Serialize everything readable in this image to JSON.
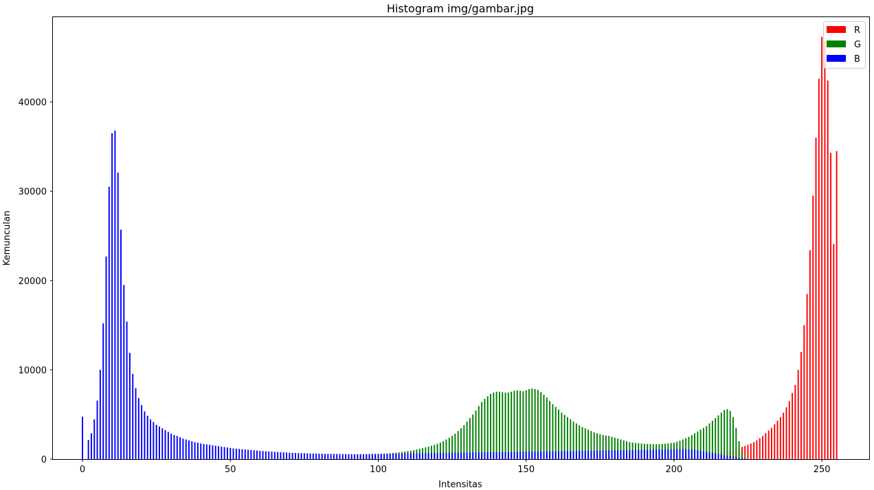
{
  "chart_data": {
    "type": "bar",
    "title": "Histogram img/gambar.jpg",
    "xlabel": "Intensitas",
    "ylabel": "Kemunculan",
    "xlim": [
      -10,
      266
    ],
    "ylim": [
      0,
      49500
    ],
    "xticks": [
      0,
      50,
      100,
      150,
      200,
      250
    ],
    "yticks": [
      0,
      10000,
      20000,
      30000,
      40000
    ],
    "legend_position": "top-right",
    "grid": false,
    "series": [
      {
        "name": "R",
        "color": "#ff0000",
        "values": [
          0,
          0,
          0,
          0,
          0,
          0,
          0,
          0,
          0,
          0,
          0,
          0,
          0,
          0,
          0,
          0,
          0,
          0,
          0,
          0,
          0,
          0,
          0,
          0,
          0,
          0,
          0,
          0,
          0,
          0,
          0,
          0,
          0,
          0,
          0,
          0,
          0,
          0,
          0,
          0,
          0,
          0,
          0,
          0,
          0,
          0,
          0,
          0,
          0,
          0,
          0,
          0,
          0,
          0,
          0,
          0,
          0,
          0,
          0,
          0,
          0,
          0,
          0,
          0,
          0,
          0,
          0,
          0,
          0,
          0,
          0,
          0,
          0,
          0,
          0,
          0,
          0,
          0,
          0,
          0,
          0,
          0,
          0,
          0,
          0,
          0,
          0,
          0,
          0,
          0,
          0,
          0,
          0,
          0,
          0,
          0,
          0,
          0,
          0,
          0,
          0,
          0,
          0,
          0,
          0,
          0,
          0,
          0,
          0,
          0,
          0,
          0,
          0,
          0,
          0,
          0,
          0,
          0,
          0,
          0,
          0,
          0,
          0,
          0,
          0,
          0,
          0,
          0,
          0,
          0,
          0,
          0,
          0,
          0,
          0,
          0,
          0,
          0,
          0,
          0,
          0,
          0,
          0,
          0,
          0,
          0,
          0,
          0,
          0,
          0,
          0,
          0,
          0,
          0,
          0,
          0,
          0,
          0,
          0,
          0,
          0,
          0,
          0,
          0,
          0,
          0,
          0,
          0,
          0,
          0,
          0,
          0,
          0,
          0,
          0,
          0,
          0,
          0,
          0,
          0,
          0,
          0,
          0,
          0,
          0,
          0,
          0,
          0,
          0,
          0,
          0,
          0,
          0,
          0,
          0,
          0,
          0,
          0,
          0,
          0,
          0,
          50,
          80,
          110,
          140,
          170,
          200,
          240,
          280,
          320,
          360,
          410,
          460,
          520,
          580,
          650,
          720,
          800,
          880,
          960,
          1050,
          1150,
          1250,
          1360,
          1480,
          1610,
          1750,
          1900,
          2100,
          2350,
          2600,
          2900,
          3200,
          3500,
          3900,
          4300,
          4700,
          5200,
          5800,
          6500,
          7400,
          8300,
          10000,
          12000,
          15000,
          18500,
          23400,
          29500,
          36000,
          42600,
          47300,
          46800,
          42400,
          34300,
          24100,
          34500
        ]
      },
      {
        "name": "G",
        "color": "#008000",
        "values": [
          0,
          0,
          0,
          0,
          0,
          0,
          0,
          0,
          0,
          0,
          0,
          0,
          0,
          0,
          0,
          0,
          0,
          0,
          0,
          0,
          0,
          0,
          0,
          0,
          0,
          0,
          0,
          0,
          0,
          0,
          0,
          0,
          0,
          0,
          0,
          0,
          0,
          0,
          0,
          0,
          0,
          0,
          0,
          0,
          0,
          0,
          0,
          0,
          0,
          0,
          0,
          0,
          0,
          0,
          0,
          0,
          0,
          0,
          0,
          0,
          0,
          0,
          0,
          0,
          0,
          0,
          0,
          0,
          0,
          0,
          0,
          0,
          0,
          0,
          0,
          0,
          0,
          0,
          0,
          0,
          0,
          0,
          0,
          0,
          0,
          0,
          0,
          0,
          0,
          0,
          0,
          100,
          200,
          300,
          350,
          400,
          450,
          500,
          520,
          540,
          560,
          580,
          600,
          630,
          660,
          690,
          720,
          760,
          800,
          850,
          900,
          950,
          1000,
          1080,
          1160,
          1240,
          1320,
          1400,
          1500,
          1600,
          1720,
          1850,
          2000,
          2200,
          2400,
          2600,
          2850,
          3150,
          3450,
          3800,
          4200,
          4600,
          5000,
          5450,
          5950,
          6400,
          6750,
          7050,
          7300,
          7450,
          7550,
          7550,
          7500,
          7450,
          7450,
          7550,
          7650,
          7700,
          7650,
          7600,
          7700,
          7850,
          7900,
          7850,
          7750,
          7500,
          7200,
          6900,
          6500,
          6150,
          5850,
          5550,
          5200,
          4950,
          4700,
          4450,
          4200,
          4000,
          3800,
          3600,
          3450,
          3300,
          3150,
          3000,
          2900,
          2800,
          2700,
          2650,
          2600,
          2500,
          2400,
          2300,
          2200,
          2100,
          2000,
          1900,
          1850,
          1800,
          1780,
          1750,
          1720,
          1700,
          1690,
          1680,
          1670,
          1680,
          1700,
          1720,
          1750,
          1800,
          1850,
          1950,
          2050,
          2200,
          2350,
          2500,
          2700,
          2900,
          3100,
          3300,
          3500,
          3700,
          4000,
          4300,
          4600,
          4900,
          5200,
          5500,
          5600,
          5400,
          4700,
          3500,
          2000,
          800,
          200,
          0,
          0,
          0,
          0,
          0,
          0,
          0,
          0,
          0,
          0,
          0,
          0,
          0,
          0,
          0,
          0,
          0,
          0,
          0,
          0,
          0,
          0,
          0,
          0,
          0,
          0
        ]
      },
      {
        "name": "B",
        "color": "#0000ff",
        "values": [
          4750,
          0,
          2150,
          2900,
          4450,
          6550,
          10000,
          15200,
          22700,
          30500,
          36500,
          36800,
          32100,
          25700,
          19500,
          15400,
          11900,
          9550,
          7950,
          6850,
          6050,
          5350,
          4850,
          4450,
          4150,
          3850,
          3650,
          3450,
          3250,
          3050,
          2850,
          2700,
          2600,
          2450,
          2300,
          2200,
          2100,
          2000,
          1900,
          1850,
          1750,
          1700,
          1650,
          1600,
          1550,
          1500,
          1450,
          1400,
          1350,
          1300,
          1250,
          1200,
          1170,
          1140,
          1110,
          1080,
          1050,
          1020,
          990,
          960,
          930,
          900,
          880,
          860,
          840,
          820,
          800,
          780,
          760,
          740,
          720,
          700,
          690,
          680,
          670,
          660,
          650,
          640,
          630,
          620,
          610,
          600,
          595,
          590,
          585,
          580,
          575,
          570,
          565,
          560,
          560,
          560,
          560,
          560,
          560,
          565,
          570,
          575,
          580,
          585,
          590,
          595,
          600,
          605,
          610,
          615,
          620,
          625,
          630,
          635,
          640,
          645,
          650,
          655,
          660,
          665,
          670,
          675,
          680,
          685,
          690,
          695,
          700,
          705,
          710,
          715,
          720,
          725,
          730,
          735,
          740,
          745,
          750,
          755,
          760,
          765,
          770,
          775,
          780,
          785,
          790,
          795,
          800,
          805,
          810,
          815,
          820,
          825,
          830,
          835,
          840,
          845,
          850,
          855,
          860,
          865,
          870,
          875,
          880,
          885,
          890,
          895,
          900,
          905,
          910,
          915,
          920,
          925,
          930,
          935,
          940,
          945,
          950,
          955,
          960,
          965,
          970,
          975,
          980,
          985,
          990,
          995,
          1000,
          1005,
          1010,
          1015,
          1020,
          1025,
          1030,
          1035,
          1040,
          1045,
          1050,
          1055,
          1060,
          1065,
          1070,
          1075,
          1080,
          1085,
          1090,
          1095,
          1100,
          1095,
          1090,
          1080,
          1060,
          1030,
          990,
          940,
          880,
          820,
          760,
          700,
          640,
          580,
          520,
          460,
          400,
          340,
          280,
          220,
          160,
          100,
          0,
          0,
          0,
          0,
          0,
          0,
          0,
          0,
          0,
          0,
          0,
          0,
          0,
          0,
          0,
          0,
          0,
          0,
          0,
          0,
          0,
          0,
          0,
          0,
          0,
          0,
          0,
          0,
          0,
          0,
          0,
          0,
          0,
          0,
          0,
          0,
          0,
          0,
          0,
          0,
          0,
          0,
          0,
          0,
          0,
          0,
          0,
          0,
          0,
          0,
          0,
          0,
          0
        ]
      }
    ]
  }
}
